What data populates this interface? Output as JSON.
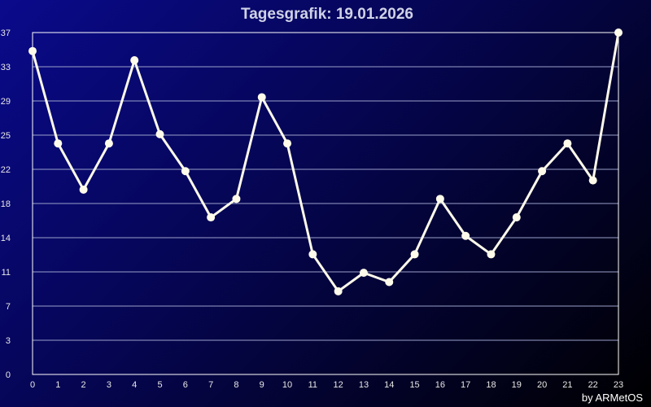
{
  "chart_data": {
    "type": "line",
    "title": "Tagesgrafik: 19.01.2026",
    "credit": "by ARMetOS",
    "x": [
      0,
      1,
      2,
      3,
      4,
      5,
      6,
      7,
      8,
      9,
      10,
      11,
      12,
      13,
      14,
      15,
      16,
      17,
      18,
      19,
      20,
      21,
      22,
      23
    ],
    "x_tick_labels": [
      "0",
      "1",
      "2",
      "3",
      "4",
      "5",
      "6",
      "7",
      "8",
      "9",
      "10",
      "11",
      "12",
      "13",
      "14",
      "15",
      "16",
      "17",
      "18",
      "19",
      "20",
      "21",
      "22",
      "23"
    ],
    "y_tick_labels": [
      "0",
      "3",
      "7",
      "11",
      "14",
      "18",
      "22",
      "25",
      "29",
      "33",
      "37"
    ],
    "ylim": [
      0,
      37
    ],
    "grid": true,
    "colors": {
      "line": "#fffbea",
      "marker": "#fffbea",
      "grid": "#9aa0c8",
      "axis": "#ffffff"
    },
    "series": [
      {
        "values": [
          35,
          25,
          20,
          25,
          34,
          26,
          22,
          17,
          19,
          30,
          25,
          13,
          9,
          11,
          10,
          13,
          19,
          15,
          13,
          17,
          22,
          25,
          21,
          37
        ]
      }
    ]
  }
}
